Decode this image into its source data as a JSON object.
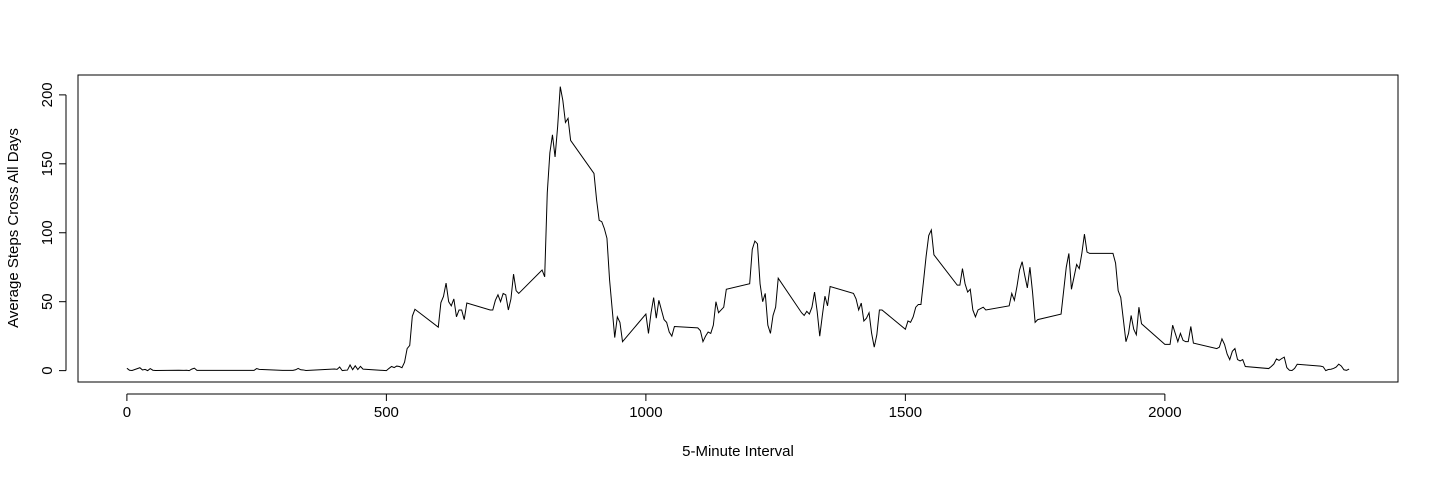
{
  "chart_data": {
    "type": "line",
    "x_label": "5-Minute Interval",
    "y_label": "Average Steps Cross All Days",
    "color": "#000000",
    "xlim": [
      -94.2,
      2449.2
    ],
    "ylim": [
      -8.25,
      214.42
    ],
    "xticks": [
      0,
      500,
      1000,
      1500,
      2000
    ],
    "yticks": [
      0,
      50,
      100,
      150,
      200
    ],
    "x": [
      0,
      5,
      10,
      25,
      30,
      35,
      40,
      45,
      50,
      55,
      100,
      110,
      115,
      120,
      125,
      130,
      135,
      245,
      250,
      255,
      300,
      320,
      325,
      330,
      335,
      340,
      345,
      400,
      405,
      410,
      415,
      420,
      425,
      430,
      435,
      440,
      445,
      450,
      455,
      500,
      505,
      510,
      515,
      520,
      525,
      530,
      535,
      540,
      545,
      550,
      555,
      600,
      605,
      610,
      615,
      620,
      625,
      630,
      635,
      640,
      645,
      650,
      655,
      700,
      705,
      710,
      715,
      720,
      725,
      730,
      735,
      740,
      745,
      750,
      755,
      800,
      805,
      810,
      815,
      820,
      825,
      830,
      835,
      840,
      845,
      850,
      855,
      900,
      905,
      910,
      915,
      920,
      925,
      930,
      935,
      940,
      945,
      950,
      955,
      1000,
      1005,
      1010,
      1015,
      1020,
      1025,
      1030,
      1035,
      1040,
      1045,
      1050,
      1055,
      1100,
      1105,
      1110,
      1115,
      1120,
      1125,
      1130,
      1135,
      1140,
      1145,
      1150,
      1155,
      1200,
      1205,
      1210,
      1215,
      1220,
      1225,
      1230,
      1235,
      1240,
      1245,
      1250,
      1255,
      1300,
      1305,
      1310,
      1315,
      1320,
      1325,
      1330,
      1335,
      1340,
      1345,
      1350,
      1355,
      1400,
      1405,
      1410,
      1415,
      1420,
      1425,
      1430,
      1435,
      1440,
      1445,
      1450,
      1455,
      1500,
      1505,
      1510,
      1515,
      1520,
      1525,
      1530,
      1535,
      1540,
      1545,
      1550,
      1555,
      1600,
      1605,
      1610,
      1615,
      1620,
      1625,
      1630,
      1635,
      1640,
      1645,
      1650,
      1655,
      1700,
      1705,
      1710,
      1715,
      1720,
      1725,
      1730,
      1735,
      1740,
      1745,
      1750,
      1755,
      1800,
      1805,
      1810,
      1815,
      1820,
      1825,
      1830,
      1835,
      1840,
      1845,
      1850,
      1855,
      1900,
      1905,
      1910,
      1915,
      1920,
      1925,
      1930,
      1935,
      1940,
      1945,
      1950,
      1955,
      2000,
      2005,
      2010,
      2015,
      2020,
      2025,
      2030,
      2035,
      2040,
      2045,
      2050,
      2055,
      2100,
      2105,
      2110,
      2115,
      2120,
      2125,
      2130,
      2135,
      2140,
      2145,
      2150,
      2155,
      2200,
      2205,
      2210,
      2215,
      2220,
      2225,
      2230,
      2235,
      2240,
      2245,
      2250,
      2255,
      2300,
      2305,
      2310,
      2315,
      2320,
      2325,
      2330,
      2335,
      2340,
      2345,
      2350,
      2355
    ],
    "values": [
      1.7,
      0.3,
      0.1,
      2.1,
      0.5,
      0.9,
      0,
      1.5,
      0.3,
      0.1,
      0.3,
      0.2,
      0.3,
      0,
      1.1,
      1.8,
      0.2,
      0.2,
      1.5,
      0.9,
      0.2,
      0.2,
      0.6,
      1.6,
      0.6,
      0.5,
      0.1,
      1.2,
      0.9,
      2.6,
      0,
      0.3,
      0.4,
      4.1,
      0.7,
      3.5,
      0.8,
      3.1,
      1.1,
      0,
      1.6,
      3,
      2.2,
      3.3,
      3,
      2.1,
      6.1,
      16,
      18.3,
      39.5,
      44.5,
      31.5,
      49.3,
      53.8,
      63.5,
      50,
      47,
      52,
      39,
      44,
      44,
      37,
      49,
      44,
      44,
      51,
      55,
      50,
      56,
      55,
      44,
      52,
      70,
      58,
      56,
      73,
      68,
      129,
      158,
      171,
      155,
      177,
      206,
      196,
      180,
      183,
      167,
      143,
      124,
      109,
      108,
      103,
      96,
      66,
      45,
      24,
      39,
      35,
      21,
      41,
      27,
      42,
      53,
      38,
      51,
      44,
      37,
      35,
      28,
      25,
      32,
      31,
      29,
      21,
      25,
      28,
      27,
      33,
      50,
      42,
      44,
      46,
      59,
      63,
      88,
      94,
      92,
      63,
      50,
      56,
      33,
      27,
      40,
      46,
      67,
      42,
      40,
      43,
      41,
      46,
      57,
      43,
      25,
      40,
      54,
      47,
      61,
      56,
      52,
      44,
      49,
      36,
      38,
      42,
      27,
      17,
      26,
      44,
      44,
      30,
      36,
      35,
      39,
      46,
      48,
      48,
      65,
      83,
      98,
      102,
      84,
      62,
      62,
      74,
      63,
      57,
      59,
      44,
      39,
      44,
      45,
      46,
      44,
      47,
      56,
      51,
      61,
      73,
      79,
      69,
      60,
      75,
      57,
      35,
      37,
      41,
      58,
      75,
      85,
      59,
      68,
      77,
      74,
      85,
      99,
      86,
      85,
      85,
      78,
      58,
      53,
      37,
      21,
      27,
      40,
      30,
      26,
      46,
      34,
      19,
      19,
      19,
      33,
      27,
      21,
      27,
      22,
      21,
      21,
      32,
      20,
      16,
      17,
      23,
      19,
      12,
      8,
      14,
      16,
      8,
      7,
      8,
      3,
      1.5,
      3,
      4.8,
      8.5,
      7.4,
      8.7,
      9.8,
      2.2,
      0.3,
      0.1,
      1.6,
      4.6,
      3.3,
      2.8,
      0,
      0.8,
      1,
      1.6,
      2.6,
      4.7,
      3.3,
      0.6,
      0.2,
      1.1
    ]
  }
}
